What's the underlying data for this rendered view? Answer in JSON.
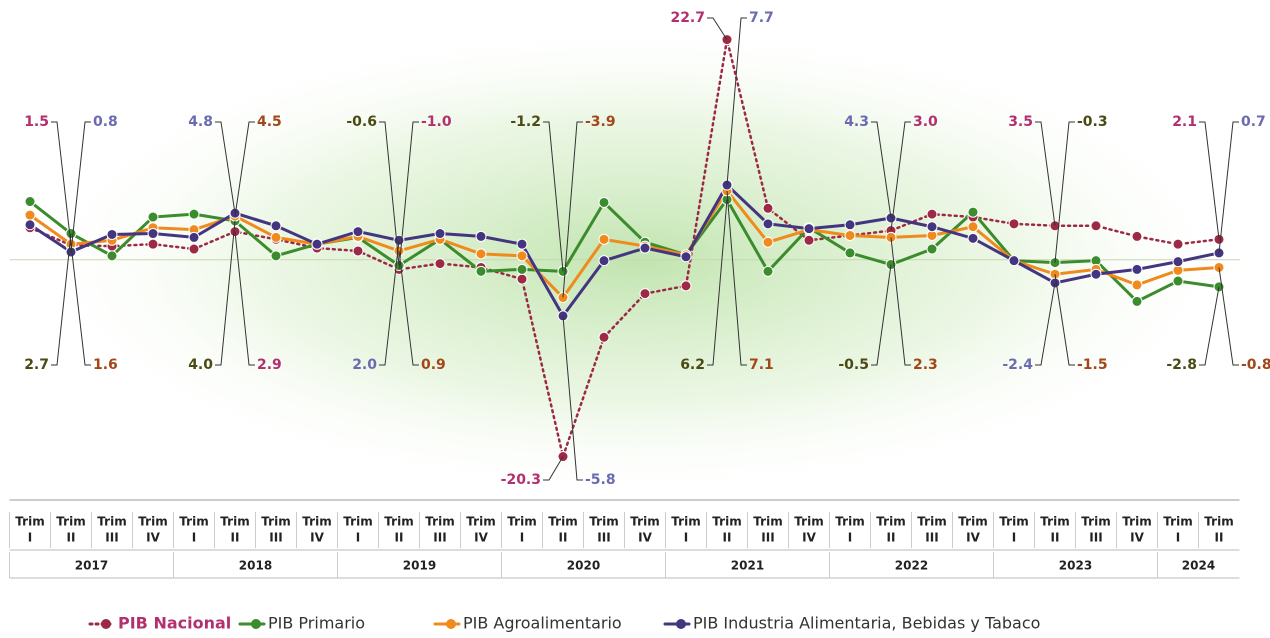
{
  "chart_data": {
    "type": "line",
    "categories": [
      "I",
      "II",
      "III",
      "IV",
      "I",
      "II",
      "III",
      "IV",
      "I",
      "II",
      "III",
      "IV",
      "I",
      "II",
      "III",
      "IV",
      "I",
      "II",
      "III",
      "IV",
      "I",
      "II",
      "III",
      "IV",
      "I",
      "II",
      "III",
      "IV",
      "I",
      "II"
    ],
    "category_prefix": "Trim",
    "years": [
      "2017",
      "2018",
      "2019",
      "2020",
      "2021",
      "2022",
      "2023",
      "2024"
    ],
    "ylim": [
      -22,
      24
    ],
    "series": [
      {
        "name": "PIB Nacional",
        "color": "#9c2a45",
        "label_color": "#b3306e",
        "dashed": true,
        "values": [
          3.3,
          1.5,
          1.4,
          1.6,
          1.1,
          2.9,
          2.1,
          1.2,
          0.9,
          -1.0,
          -0.4,
          -0.8,
          -2.0,
          -20.3,
          -8.0,
          -3.5,
          -2.7,
          22.7,
          5.3,
          2.0,
          2.5,
          3.0,
          4.7,
          4.4,
          3.7,
          3.5,
          3.5,
          2.4,
          1.6,
          2.1
        ],
        "value_labels": [
          null,
          "1.5",
          null,
          null,
          null,
          "2.9",
          null,
          null,
          null,
          "-1.0",
          null,
          null,
          null,
          "-20.3",
          null,
          null,
          null,
          "22.7",
          null,
          null,
          null,
          "3.0",
          null,
          null,
          null,
          "3.5",
          null,
          null,
          null,
          "2.1"
        ]
      },
      {
        "name": "PIB Primario",
        "color": "#3a8c2c",
        "label_color": "#4a4a14",
        "dashed": false,
        "values": [
          6.0,
          2.7,
          0.4,
          4.4,
          4.7,
          4.0,
          0.4,
          1.6,
          2.3,
          -0.6,
          2.1,
          -1.2,
          -1.0,
          -1.2,
          5.9,
          1.8,
          0.5,
          6.2,
          -1.2,
          3.3,
          0.7,
          -0.5,
          1.1,
          4.9,
          -0.1,
          -0.3,
          -0.1,
          -4.3,
          -2.2,
          -2.8
        ],
        "value_labels": [
          null,
          "2.7",
          null,
          null,
          null,
          "4.0",
          null,
          null,
          null,
          "-0.6",
          null,
          null,
          null,
          "-1.2",
          null,
          null,
          null,
          "6.2",
          null,
          null,
          null,
          "-0.5",
          null,
          null,
          null,
          "-0.3",
          null,
          null,
          null,
          "-2.8"
        ]
      },
      {
        "name": "PIB Agroalimentario",
        "color": "#f08a1c",
        "label_color": "#a3461a",
        "dashed": false,
        "values": [
          4.6,
          1.6,
          2.0,
          3.3,
          3.1,
          4.5,
          2.3,
          1.6,
          2.4,
          0.9,
          2.1,
          0.6,
          0.4,
          -3.9,
          2.1,
          1.4,
          0.5,
          7.1,
          1.8,
          3.1,
          2.5,
          2.3,
          2.5,
          3.4,
          -0.1,
          -1.5,
          -1.0,
          -2.6,
          -1.1,
          -0.8
        ],
        "value_labels": [
          null,
          "1.6",
          null,
          null,
          null,
          "4.5",
          null,
          null,
          null,
          "0.9",
          null,
          null,
          null,
          "-3.9",
          null,
          null,
          null,
          "7.1",
          null,
          null,
          null,
          "2.3",
          null,
          null,
          null,
          "-1.5",
          null,
          null,
          null,
          "-0.8"
        ]
      },
      {
        "name": "PIB Industria Alimentaria, Bebidas y Tabaco",
        "color": "#43357f",
        "label_color": "#6b6bb0",
        "dashed": false,
        "values": [
          3.6,
          0.8,
          2.6,
          2.7,
          2.3,
          4.8,
          3.5,
          1.6,
          2.9,
          2.0,
          2.7,
          2.4,
          1.6,
          -5.8,
          -0.1,
          1.2,
          0.3,
          7.7,
          3.7,
          3.2,
          3.6,
          4.3,
          3.4,
          2.2,
          -0.1,
          -2.4,
          -1.5,
          -1.0,
          -0.2,
          0.7
        ],
        "value_labels": [
          null,
          "0.8",
          null,
          null,
          null,
          "4.8",
          null,
          null,
          null,
          "2.0",
          null,
          null,
          null,
          "-5.8",
          null,
          null,
          null,
          "7.7",
          null,
          null,
          null,
          "4.3",
          null,
          null,
          null,
          "-2.4",
          null,
          null,
          null,
          "0.7"
        ]
      }
    ]
  }
}
